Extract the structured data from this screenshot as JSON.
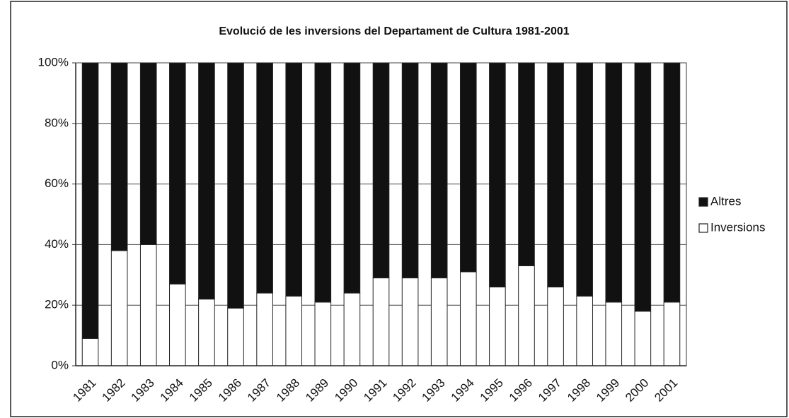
{
  "chart_data": {
    "type": "stacked_bar",
    "title": "Evolució de les inversions del Departament de Cultura 1981-2001",
    "categories": [
      "1981",
      "1982",
      "1983",
      "1984",
      "1985",
      "1986",
      "1987",
      "1988",
      "1989",
      "1990",
      "1991",
      "1992",
      "1993",
      "1994",
      "1995",
      "1996",
      "1997",
      "1998",
      "1999",
      "2000",
      "2001"
    ],
    "series": [
      {
        "name": "Inversions",
        "color": "#ffffff",
        "values": [
          9,
          38,
          40,
          27,
          22,
          19,
          24,
          23,
          21,
          24,
          29,
          29,
          29,
          31,
          26,
          33,
          26,
          23,
          21,
          18,
          21
        ]
      },
      {
        "name": "Altres",
        "color": "#111111",
        "values": [
          91,
          62,
          60,
          73,
          78,
          81,
          76,
          77,
          79,
          76,
          71,
          71,
          71,
          69,
          74,
          67,
          74,
          77,
          79,
          82,
          79
        ]
      }
    ],
    "ylim": [
      0,
      100
    ],
    "yticks": [
      {
        "value": 0,
        "label": "0%"
      },
      {
        "value": 20,
        "label": "20%"
      },
      {
        "value": 40,
        "label": "40%"
      },
      {
        "value": 60,
        "label": "60%"
      },
      {
        "value": 80,
        "label": "80%"
      },
      {
        "value": 100,
        "label": "100%"
      }
    ],
    "grid": true,
    "legend": "right"
  }
}
